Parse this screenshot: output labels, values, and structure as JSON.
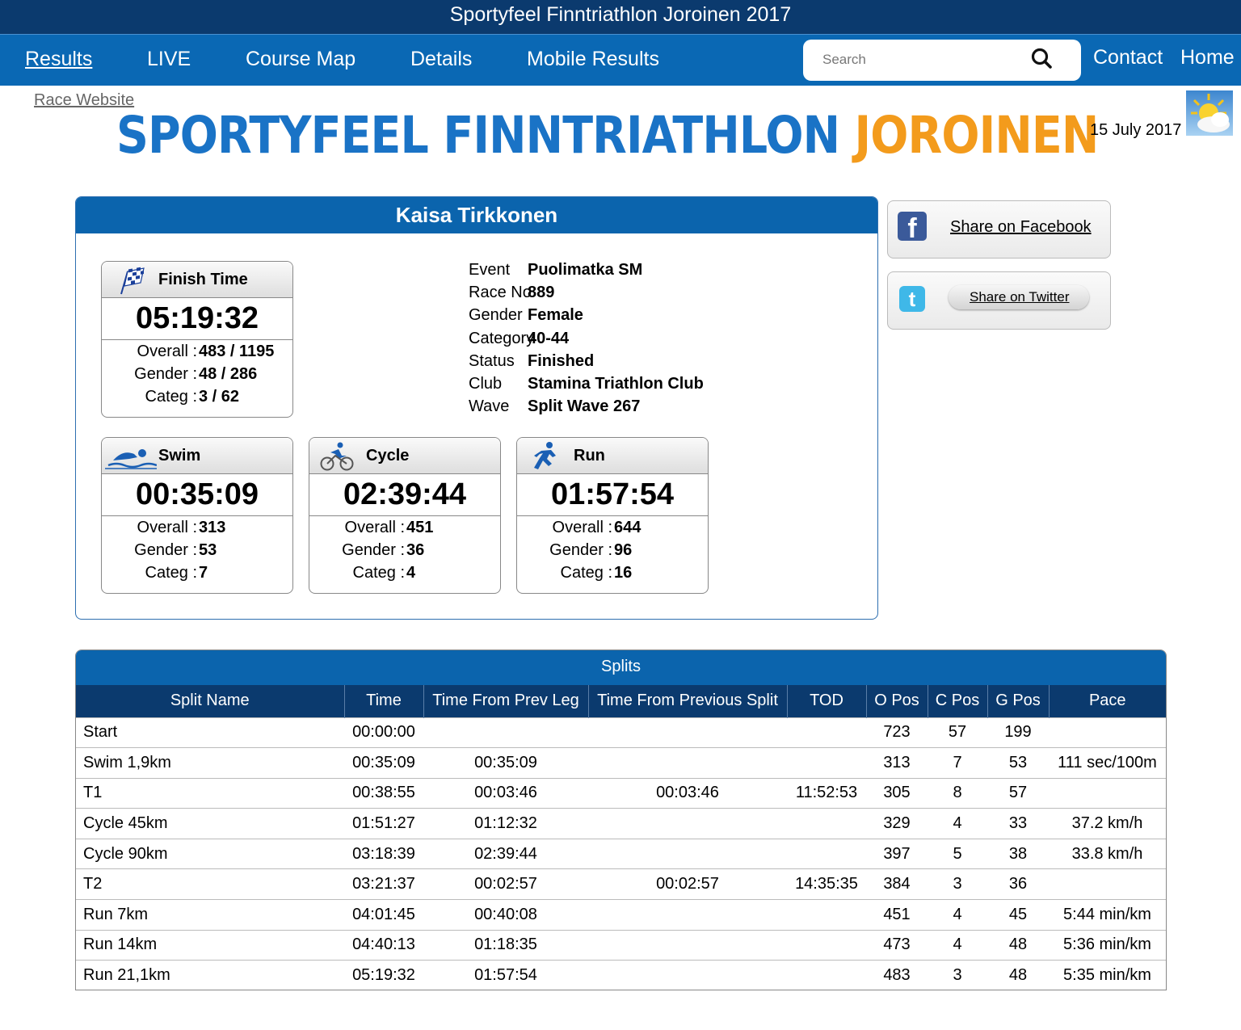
{
  "page_title": "Sportyfeel Finntriathlon Joroinen 2017",
  "nav": {
    "items": [
      "Results",
      "LIVE",
      "Course Map",
      "Details",
      "Mobile Results"
    ],
    "search_placeholder": "Search",
    "contact": "Contact",
    "home": "Home"
  },
  "header": {
    "race_website": "Race Website",
    "logo_blue": "SPORTYFEEL FINNTRIATHLON ",
    "logo_orange": "JOROINEN",
    "date": "15 July 2017"
  },
  "athlete": {
    "name": "Kaisa Tirkkonen",
    "finish": {
      "label": "Finish Time",
      "time": "05:19:32",
      "overall_label": "Overall :",
      "overall": "483 / 1195",
      "gender_label": "Gender :",
      "gender": "48 / 286",
      "categ_label": "Categ :",
      "categ": "3 / 62"
    },
    "info": [
      {
        "key": "Event",
        "value": "Puolimatka SM"
      },
      {
        "key": "Race No",
        "value": "889"
      },
      {
        "key": "Gender",
        "value": "Female"
      },
      {
        "key": "Category",
        "value": "40-44"
      },
      {
        "key": "Status",
        "value": "Finished"
      },
      {
        "key": "Club",
        "value": "Stamina Triathlon Club"
      },
      {
        "key": "Wave",
        "value": "Split Wave 267"
      }
    ],
    "legs": [
      {
        "label": "Swim",
        "time": "00:35:09",
        "overall": "313",
        "gender": "53",
        "categ": "7"
      },
      {
        "label": "Cycle",
        "time": "02:39:44",
        "overall": "451",
        "gender": "36",
        "categ": "4"
      },
      {
        "label": "Run",
        "time": "01:57:54",
        "overall": "644",
        "gender": "96",
        "categ": "16"
      }
    ],
    "leg_labels": {
      "overall": "Overall :",
      "gender": "Gender :",
      "categ": "Categ :"
    }
  },
  "share": {
    "facebook": "Share on Facebook",
    "twitter": "Share on Twitter"
  },
  "splits": {
    "title": "Splits",
    "headers": [
      "Split Name",
      "Time",
      "Time From Prev Leg",
      "Time From Previous Split",
      "TOD",
      "O Pos",
      "C Pos",
      "G Pos",
      "Pace"
    ],
    "rows": [
      [
        "Start",
        "00:00:00",
        "",
        "",
        "",
        "723",
        "57",
        "199",
        ""
      ],
      [
        "Swim 1,9km",
        "00:35:09",
        "00:35:09",
        "",
        "",
        "313",
        "7",
        "53",
        "111 sec/100m"
      ],
      [
        "T1",
        "00:38:55",
        "00:03:46",
        "00:03:46",
        "11:52:53",
        "305",
        "8",
        "57",
        ""
      ],
      [
        "Cycle 45km",
        "01:51:27",
        "01:12:32",
        "",
        "",
        "329",
        "4",
        "33",
        "37.2 km/h"
      ],
      [
        "Cycle 90km",
        "03:18:39",
        "02:39:44",
        "",
        "",
        "397",
        "5",
        "38",
        "33.8 km/h"
      ],
      [
        "T2",
        "03:21:37",
        "00:02:57",
        "00:02:57",
        "14:35:35",
        "384",
        "3",
        "36",
        ""
      ],
      [
        "Run 7km",
        "04:01:45",
        "00:40:08",
        "",
        "",
        "451",
        "4",
        "45",
        "5:44 min/km"
      ],
      [
        "Run 14km",
        "04:40:13",
        "01:18:35",
        "",
        "",
        "473",
        "4",
        "48",
        "5:36 min/km"
      ],
      [
        "Run 21,1km",
        "05:19:32",
        "01:57:54",
        "",
        "",
        "483",
        "3",
        "48",
        "5:35 min/km"
      ]
    ]
  },
  "colors": {
    "nav_dark": "#0b3a6e",
    "nav_blue": "#0a68b4",
    "logo_blue": "#1a73c6",
    "logo_orange": "#f39b1c"
  },
  "icons": [
    "search-icon",
    "weather-icon",
    "checkered-flag-icon",
    "swimmer-icon",
    "cyclist-icon",
    "runner-icon",
    "facebook-icon",
    "twitter-icon"
  ]
}
